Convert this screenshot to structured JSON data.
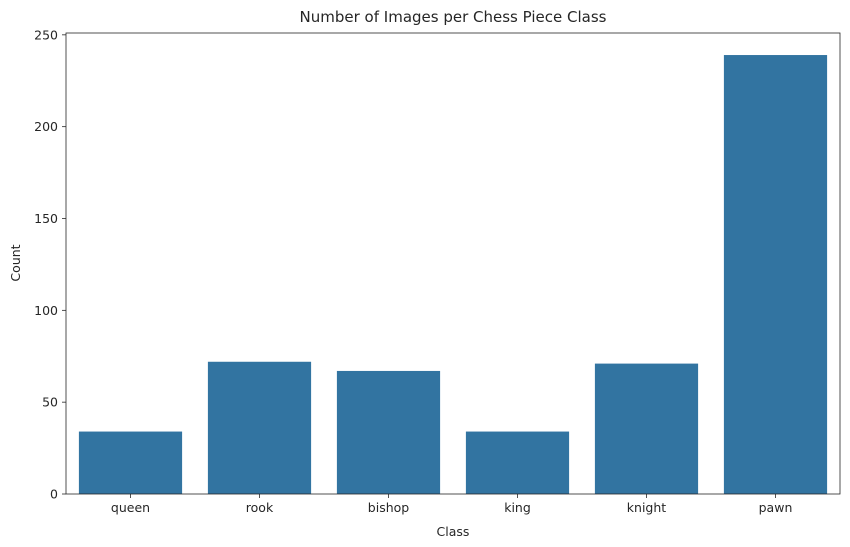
{
  "chart_data": {
    "type": "bar",
    "title": "Number of Images per Chess Piece Class",
    "xlabel": "Class",
    "ylabel": "Count",
    "categories": [
      "queen",
      "rook",
      "bishop",
      "king",
      "knight",
      "pawn"
    ],
    "values": [
      34,
      72,
      67,
      34,
      71,
      239
    ],
    "ylim": [
      0,
      251
    ],
    "yticks": [
      0,
      50,
      100,
      150,
      200,
      250
    ],
    "grid": false,
    "bar_color": "#3274a1"
  }
}
